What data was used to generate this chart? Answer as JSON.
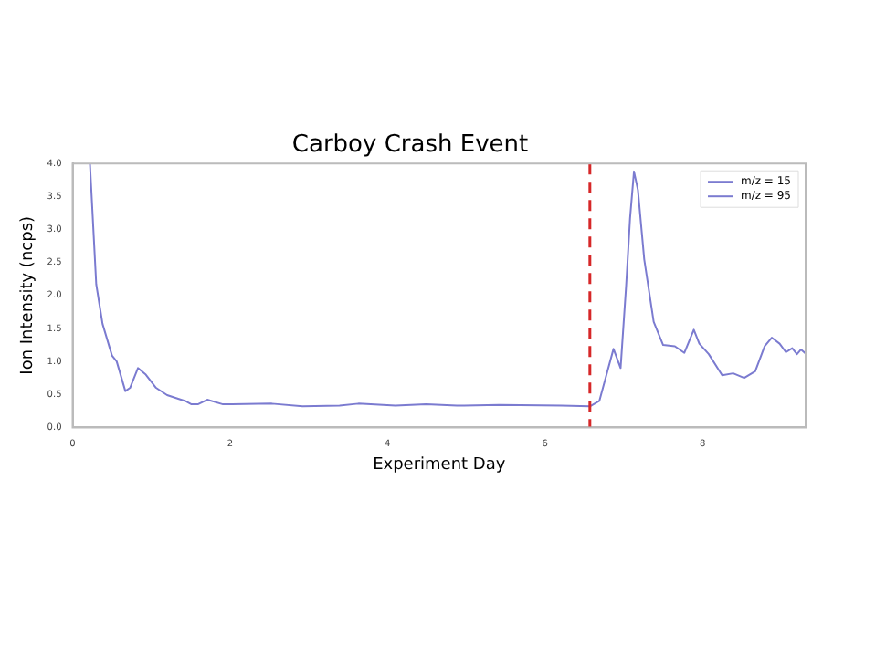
{
  "chart_data": {
    "type": "line",
    "title": "Carboy Crash Event",
    "xlabel": "Experiment Day",
    "ylabel": "Ion Intensity (ncps)",
    "xlim": [
      0,
      9.31
    ],
    "xticks": [
      0,
      2,
      4,
      6,
      8
    ],
    "ylim": [
      0,
      4
    ],
    "yticks": [
      {
        "value": 0,
        "label": "0.0"
      },
      {
        "value": 0.5,
        "label": "0.5"
      },
      {
        "value": 1,
        "label": "1.0"
      },
      {
        "value": 1.5,
        "label": "1.5"
      },
      {
        "value": 2,
        "label": "2.0"
      },
      {
        "value": 2.5,
        "label": "2.5"
      },
      {
        "value": 3,
        "label": "3.0"
      },
      {
        "value": 3.5,
        "label": "3.5"
      },
      {
        "value": 4,
        "label": "4.0"
      }
    ],
    "grid": false,
    "legend": "top right",
    "marker": "none",
    "line_style": "solid",
    "ref_lines": [
      {
        "axis": "x",
        "value": 6.57,
        "color": "#d62728",
        "line_style": "dashed"
      }
    ],
    "series": [
      {
        "name": "m/z = 15",
        "color": "#7b7bd0",
        "x": [
          0.22,
          0.3,
          0.38,
          0.5,
          0.56,
          0.67,
          0.73,
          0.83,
          0.93,
          1.06,
          1.2,
          1.43,
          1.51,
          1.59,
          1.71,
          1.91,
          2.53,
          2.92,
          3.39,
          3.63,
          4.1,
          4.49,
          4.88,
          5.42,
          6.21,
          6.57,
          6.69,
          6.79,
          6.87,
          6.96,
          7.03,
          7.08,
          7.13,
          7.18,
          7.26,
          7.38,
          7.5,
          7.65,
          7.77,
          7.89,
          7.96,
          8.08,
          8.25,
          8.39,
          8.53,
          8.67,
          8.79,
          8.88,
          8.98,
          9.06,
          9.14,
          9.2,
          9.25,
          9.31
        ],
        "values": [
          4.0,
          2.17,
          1.57,
          1.09,
          1.0,
          0.55,
          0.6,
          0.9,
          0.8,
          0.6,
          0.49,
          0.4,
          0.35,
          0.35,
          0.42,
          0.35,
          0.36,
          0.32,
          0.33,
          0.36,
          0.33,
          0.35,
          0.33,
          0.34,
          0.33,
          0.32,
          0.4,
          0.84,
          1.19,
          0.9,
          2.14,
          3.17,
          3.88,
          3.6,
          2.55,
          1.6,
          1.25,
          1.23,
          1.13,
          1.48,
          1.27,
          1.11,
          0.79,
          0.82,
          0.75,
          0.85,
          1.23,
          1.36,
          1.27,
          1.14,
          1.2,
          1.11,
          1.18,
          1.12
        ]
      },
      {
        "name": "m/z = 95",
        "color": "#7b7bd0"
      }
    ]
  }
}
